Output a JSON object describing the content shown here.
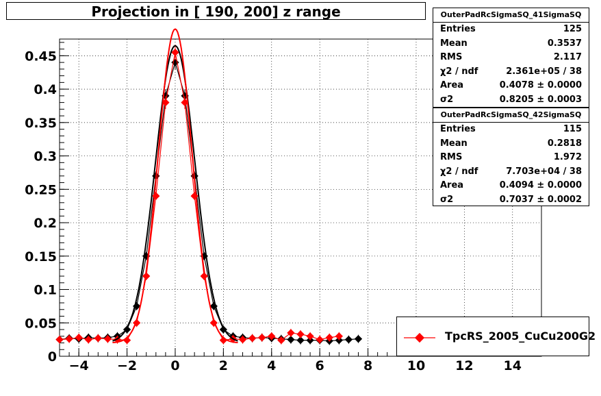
{
  "title": "Projection in [ 190, 200] z range",
  "stats": [
    {
      "name": "OuterPadRcSigmaSQ_41SigmaSQ",
      "rows": [
        {
          "k": "Entries",
          "v": "125"
        },
        {
          "k": "Mean",
          "v": "0.3537"
        },
        {
          "k": "RMS",
          "v": "2.117"
        },
        {
          "k": "χ2 / ndf",
          "v": "2.361e+05 / 38"
        },
        {
          "k": "Area",
          "v": "0.4078 ± 0.0000"
        },
        {
          "k": "σ2",
          "v": "0.8205 ± 0.0003"
        }
      ]
    },
    {
      "name": "OuterPadRcSigmaSQ_42SigmaSQ",
      "rows": [
        {
          "k": "Entries",
          "v": "115"
        },
        {
          "k": "Mean",
          "v": "0.2818"
        },
        {
          "k": "RMS",
          "v": "1.972"
        },
        {
          "k": "χ2 / ndf",
          "v": "7.703e+04 / 38"
        },
        {
          "k": "Area",
          "v": "0.4094 ± 0.0000"
        },
        {
          "k": "σ2",
          "v": "0.7037 ± 0.0002"
        }
      ]
    }
  ],
  "legend": {
    "entry": "TpcRS_2005_CuCu200G2"
  },
  "colors": {
    "series1": "#000000",
    "series2": "#ff0000"
  },
  "chart_data": {
    "type": "scatter",
    "title": "Projection in [ 190, 200] z range",
    "xlim": [
      -4.8,
      15.2
    ],
    "ylim": [
      0,
      0.475
    ],
    "grid": true,
    "x_ticks": [
      -4,
      -2,
      0,
      2,
      4,
      6,
      8,
      10,
      12,
      14
    ],
    "x_tick_labels": [
      "−4",
      "−2",
      "0",
      "2",
      "4",
      "6",
      "8",
      "10",
      "12",
      "14"
    ],
    "y_ticks": [
      0,
      0.05,
      0.1,
      0.15,
      0.2,
      0.25,
      0.3,
      0.35,
      0.4,
      0.45
    ],
    "y_tick_labels": [
      "0",
      "0.05",
      "0.1",
      "0.15",
      "0.2",
      "0.25",
      "0.3",
      "0.35",
      "0.4",
      "0.45"
    ],
    "series": [
      {
        "color": "#000000",
        "x": [
          -4.8,
          -4.4,
          -4.0,
          -3.6,
          -3.2,
          -2.8,
          -2.4,
          -2.0,
          -1.6,
          -1.2,
          -0.8,
          -0.4,
          0.0,
          0.4,
          0.8,
          1.2,
          1.6,
          2.0,
          2.4,
          2.8,
          3.2,
          3.6,
          4.0,
          4.4,
          4.8,
          5.2,
          5.6,
          6.0,
          6.4,
          6.8,
          7.2,
          7.6
        ],
        "y": [
          0.025,
          0.027,
          0.026,
          0.028,
          0.027,
          0.028,
          0.03,
          0.04,
          0.075,
          0.15,
          0.27,
          0.39,
          0.44,
          0.39,
          0.27,
          0.15,
          0.075,
          0.04,
          0.03,
          0.028,
          0.027,
          0.028,
          0.027,
          0.026,
          0.025,
          0.024,
          0.024,
          0.024,
          0.023,
          0.024,
          0.025,
          0.026
        ]
      },
      {
        "color": "#ff0000",
        "x": [
          -4.8,
          -4.4,
          -4.0,
          -3.6,
          -3.2,
          -2.8,
          -2.4,
          -2.0,
          -1.6,
          -1.2,
          -0.8,
          -0.4,
          0.0,
          0.4,
          0.8,
          1.2,
          1.6,
          2.0,
          2.4,
          2.8,
          3.2,
          3.6,
          4.0,
          4.4,
          4.8,
          5.2,
          5.6,
          6.0,
          6.4,
          6.8
        ],
        "y": [
          0.025,
          0.026,
          0.028,
          0.025,
          0.027,
          0.026,
          0.025,
          0.024,
          0.05,
          0.12,
          0.24,
          0.38,
          0.455,
          0.38,
          0.24,
          0.12,
          0.05,
          0.024,
          0.026,
          0.025,
          0.027,
          0.028,
          0.03,
          0.024,
          0.035,
          0.033,
          0.03,
          0.025,
          0.028,
          0.03
        ]
      }
    ]
  }
}
